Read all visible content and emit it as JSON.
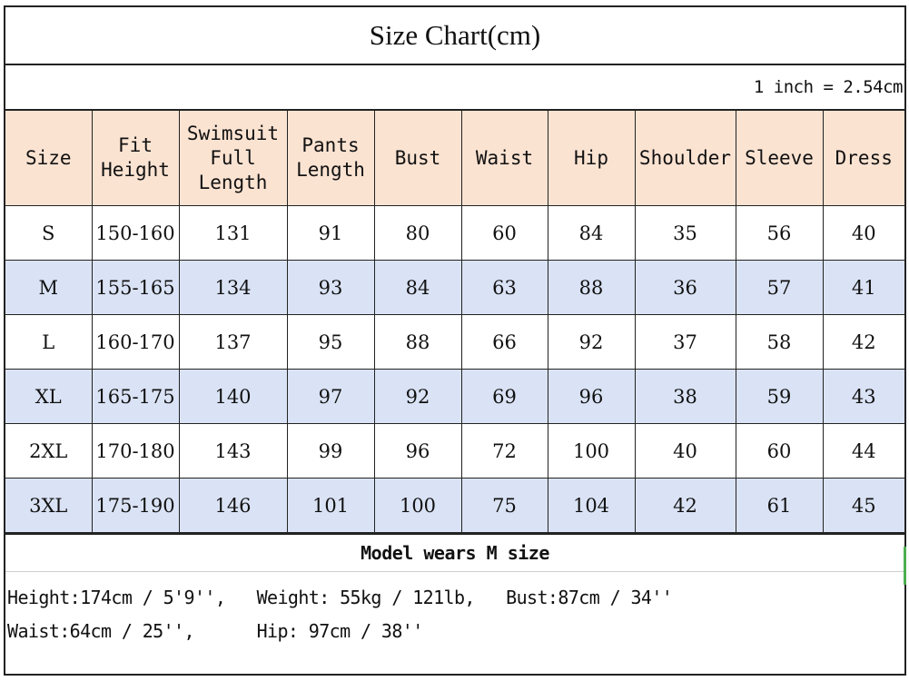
{
  "title": "Size Chart(cm)",
  "conversion_note": "1 inch = 2.54cm",
  "headers": [
    [
      "Size"
    ],
    [
      "Fit",
      "Height"
    ],
    [
      "Swimsuit",
      "Full",
      "Length"
    ],
    [
      "Pants",
      "Length"
    ],
    [
      "Bust"
    ],
    [
      "Waist"
    ],
    [
      "Hip"
    ],
    [
      "Shoulder"
    ],
    [
      "Sleeve"
    ],
    [
      "Dress"
    ]
  ],
  "rows": [
    [
      "S",
      "150-160",
      "131",
      "91",
      "80",
      "60",
      "84",
      "35",
      "56",
      "40"
    ],
    [
      "M",
      "155-165",
      "134",
      "93",
      "84",
      "63",
      "88",
      "36",
      "57",
      "41"
    ],
    [
      "L",
      "160-170",
      "137",
      "95",
      "88",
      "66",
      "92",
      "37",
      "58",
      "42"
    ],
    [
      "XL",
      "165-175",
      "140",
      "97",
      "92",
      "69",
      "96",
      "38",
      "59",
      "43"
    ],
    [
      "2XL",
      "170-180",
      "143",
      "99",
      "96",
      "72",
      "100",
      "40",
      "60",
      "44"
    ],
    [
      "3XL",
      "175-190",
      "146",
      "101",
      "100",
      "75",
      "104",
      "42",
      "61",
      "45"
    ]
  ],
  "model": {
    "title": "Model wears M size",
    "line1": "Height:174cm / 5'9'',   Weight: 55kg / 121lb,   Bust:87cm / 34''",
    "line2": "Waist:64cm / 25'',      Hip: 97cm / 38''"
  },
  "colors": {
    "header_bg": "#fbe3d2",
    "alt_row_bg": "#dae3f5",
    "border": "#222222"
  }
}
